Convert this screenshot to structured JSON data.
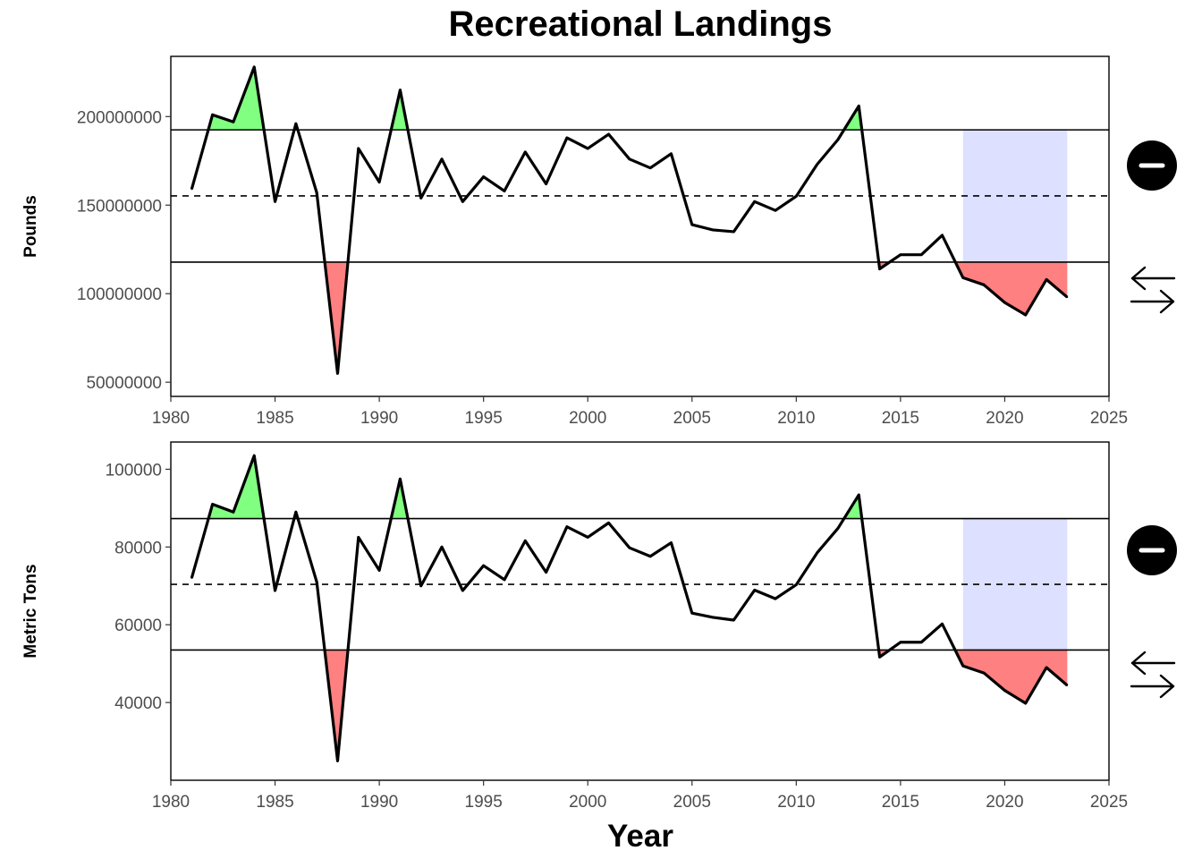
{
  "title": "Recreational Landings",
  "xlabel": "Year",
  "colors": {
    "above": "#80ff80",
    "below": "#ff8080",
    "recent": "#dde0ff",
    "line": "#000000"
  },
  "icons": [
    "minus-circle-icon",
    "left-right-arrows-icon"
  ],
  "chart_data": [
    {
      "type": "line",
      "ylabel": "Pounds",
      "xlim": [
        1980,
        2025
      ],
      "ylim": [
        42000000,
        234000000
      ],
      "x_ticks": [
        1980,
        1985,
        1990,
        1995,
        2000,
        2005,
        2010,
        2015,
        2020,
        2025
      ],
      "y_ticks": [
        50000000,
        100000000,
        150000000,
        200000000
      ],
      "mean": 155200000,
      "upper": 192500000,
      "lower": 117800000,
      "recent_window": [
        2018,
        2023
      ],
      "trend_icon": "minus-circle-icon",
      "status_icon": "left-right-arrows-icon",
      "x": [
        1981,
        1982,
        1983,
        1984,
        1985,
        1986,
        1987,
        1988,
        1989,
        1990,
        1991,
        1992,
        1993,
        1994,
        1995,
        1996,
        1997,
        1998,
        1999,
        2000,
        2001,
        2002,
        2003,
        2004,
        2005,
        2006,
        2007,
        2008,
        2009,
        2010,
        2011,
        2012,
        2013,
        2014,
        2015,
        2016,
        2017,
        2018,
        2019,
        2020,
        2021,
        2022,
        2023
      ],
      "values": [
        159000000,
        201000000,
        197000000,
        228000000,
        152000000,
        196000000,
        157000000,
        55000000,
        182000000,
        163000000,
        215000000,
        154000000,
        176000000,
        152000000,
        166000000,
        158000000,
        180000000,
        162000000,
        188000000,
        182000000,
        190000000,
        176000000,
        171000000,
        179000000,
        139000000,
        136000000,
        135000000,
        152000000,
        147000000,
        155000000,
        173000000,
        187000000,
        206000000,
        114000000,
        122000000,
        122000000,
        133000000,
        109000000,
        105000000,
        95000000,
        88000000,
        108000000,
        98000000
      ]
    },
    {
      "type": "line",
      "ylabel": "Metric Tons",
      "xlim": [
        1980,
        2025
      ],
      "ylim": [
        20000,
        107000
      ],
      "x_ticks": [
        1980,
        1985,
        1990,
        1995,
        2000,
        2005,
        2010,
        2015,
        2020,
        2025
      ],
      "y_ticks": [
        40000,
        60000,
        80000,
        100000
      ],
      "mean": 70400,
      "upper": 87300,
      "lower": 53500,
      "recent_window": [
        2018,
        2023
      ],
      "trend_icon": "minus-circle-icon",
      "status_icon": "left-right-arrows-icon",
      "x": [
        1981,
        1982,
        1983,
        1984,
        1985,
        1986,
        1987,
        1988,
        1989,
        1990,
        1991,
        1992,
        1993,
        1994,
        1995,
        1996,
        1997,
        1998,
        1999,
        2000,
        2001,
        2002,
        2003,
        2004,
        2005,
        2006,
        2007,
        2008,
        2009,
        2010,
        2011,
        2012,
        2013,
        2014,
        2015,
        2016,
        2017,
        2018,
        2019,
        2020,
        2021,
        2022,
        2023
      ],
      "values": [
        72000,
        91000,
        89000,
        103500,
        68800,
        89000,
        71000,
        25000,
        82500,
        74000,
        97500,
        70000,
        80000,
        68800,
        75200,
        71600,
        81600,
        73500,
        85200,
        82500,
        86200,
        79800,
        77600,
        81100,
        63000,
        61900,
        61200,
        68900,
        66700,
        70300,
        78500,
        84800,
        93400,
        51700,
        55500,
        55500,
        60200,
        49400,
        47600,
        43100,
        39800,
        49000,
        44400
      ]
    }
  ]
}
